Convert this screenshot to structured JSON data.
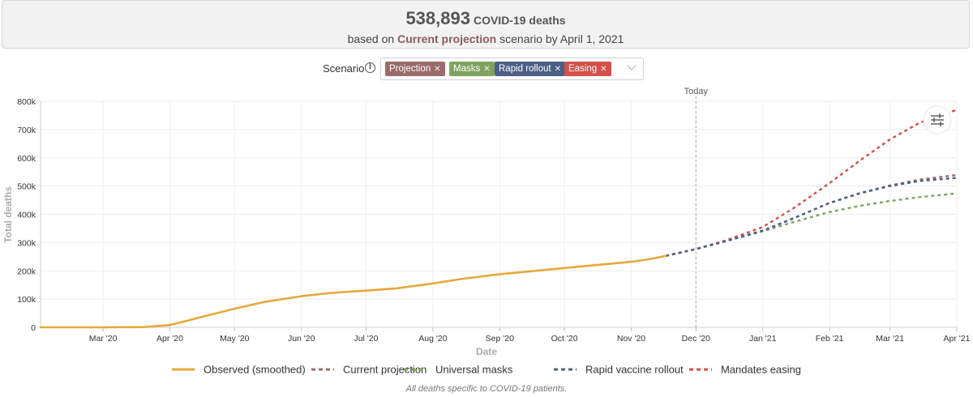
{
  "summary": {
    "count": "538,893",
    "count_suffix": "COVID-19 deaths",
    "prefix": "based on",
    "scenario": "Current projection",
    "suffix": "scenario by April 1, 2021"
  },
  "scenario_filter": {
    "label": "Scenario",
    "tags": [
      {
        "label": "Projection",
        "color": "#9b6b6b"
      },
      {
        "label": "Masks",
        "color": "#7ea35f"
      },
      {
        "label": "Rapid rollout",
        "color": "#4c5f86"
      },
      {
        "label": "Easing",
        "color": "#d2514a"
      }
    ]
  },
  "footnote": "All deaths specific to COVID-19 patients.",
  "chart_data": {
    "type": "line",
    "xlabel": "Date",
    "ylabel": "Total deaths",
    "x_ticks": [
      "Mar '20",
      "Apr '20",
      "May '20",
      "Jun '20",
      "Jul '20",
      "Aug '20",
      "Sep '20",
      "Oct '20",
      "Nov '20",
      "Dec '20",
      "Jan '21",
      "Feb '21",
      "Mar '21",
      "Apr '21"
    ],
    "y_ticks": [
      "0",
      "100k",
      "200k",
      "300k",
      "400k",
      "500k",
      "600k",
      "700k",
      "800k"
    ],
    "ylim": [
      0,
      800000
    ],
    "xlim": [
      "2020-02-01",
      "2021-04-01"
    ],
    "today": {
      "label": "Today",
      "date": "2020-12-01"
    },
    "grid": true,
    "legend_position": "bottom",
    "series": [
      {
        "name": "Observed (smoothed)",
        "color": "#e5a83c",
        "style": "solid",
        "points": [
          [
            "2020-02-01",
            0
          ],
          [
            "2020-03-01",
            0
          ],
          [
            "2020-03-20",
            1000
          ],
          [
            "2020-04-01",
            8000
          ],
          [
            "2020-04-15",
            35000
          ],
          [
            "2020-05-01",
            66000
          ],
          [
            "2020-05-15",
            90000
          ],
          [
            "2020-06-01",
            110000
          ],
          [
            "2020-06-15",
            122000
          ],
          [
            "2020-07-01",
            130000
          ],
          [
            "2020-07-15",
            138000
          ],
          [
            "2020-08-01",
            155000
          ],
          [
            "2020-08-15",
            172000
          ],
          [
            "2020-09-01",
            188000
          ],
          [
            "2020-09-15",
            198000
          ],
          [
            "2020-10-01",
            210000
          ],
          [
            "2020-10-15",
            220000
          ],
          [
            "2020-11-01",
            232000
          ],
          [
            "2020-11-10",
            242000
          ],
          [
            "2020-11-17",
            253000
          ]
        ]
      },
      {
        "name": "Current projection",
        "color": "#9b6b6b",
        "style": "dashed",
        "points": [
          [
            "2020-11-17",
            253000
          ],
          [
            "2020-12-01",
            277000
          ],
          [
            "2020-12-15",
            305000
          ],
          [
            "2021-01-01",
            342000
          ],
          [
            "2021-01-15",
            385000
          ],
          [
            "2021-02-01",
            440000
          ],
          [
            "2021-02-15",
            475000
          ],
          [
            "2021-03-01",
            502000
          ],
          [
            "2021-03-15",
            523000
          ],
          [
            "2021-04-01",
            539000
          ]
        ]
      },
      {
        "name": "Universal masks",
        "color": "#7ea35f",
        "style": "dashed",
        "points": [
          [
            "2020-11-17",
            253000
          ],
          [
            "2020-12-01",
            277000
          ],
          [
            "2020-12-15",
            305000
          ],
          [
            "2021-01-01",
            340000
          ],
          [
            "2021-01-15",
            372000
          ],
          [
            "2021-02-01",
            408000
          ],
          [
            "2021-02-15",
            430000
          ],
          [
            "2021-03-01",
            447000
          ],
          [
            "2021-03-15",
            461000
          ],
          [
            "2021-04-01",
            474000
          ]
        ]
      },
      {
        "name": "Rapid vaccine rollout",
        "color": "#4c5f86",
        "style": "dashed",
        "points": [
          [
            "2020-11-17",
            253000
          ],
          [
            "2020-12-01",
            277000
          ],
          [
            "2020-12-15",
            305000
          ],
          [
            "2021-01-01",
            342000
          ],
          [
            "2021-01-15",
            385000
          ],
          [
            "2021-02-01",
            440000
          ],
          [
            "2021-02-15",
            474000
          ],
          [
            "2021-03-01",
            500000
          ],
          [
            "2021-03-15",
            518000
          ],
          [
            "2021-04-01",
            529000
          ]
        ]
      },
      {
        "name": "Mandates easing",
        "color": "#d2514a",
        "style": "dashed",
        "points": [
          [
            "2020-11-17",
            253000
          ],
          [
            "2020-12-01",
            277000
          ],
          [
            "2020-12-15",
            308000
          ],
          [
            "2021-01-01",
            355000
          ],
          [
            "2021-01-15",
            420000
          ],
          [
            "2021-02-01",
            510000
          ],
          [
            "2021-02-15",
            590000
          ],
          [
            "2021-03-01",
            665000
          ],
          [
            "2021-03-15",
            725000
          ],
          [
            "2021-04-01",
            770000
          ]
        ]
      }
    ]
  }
}
